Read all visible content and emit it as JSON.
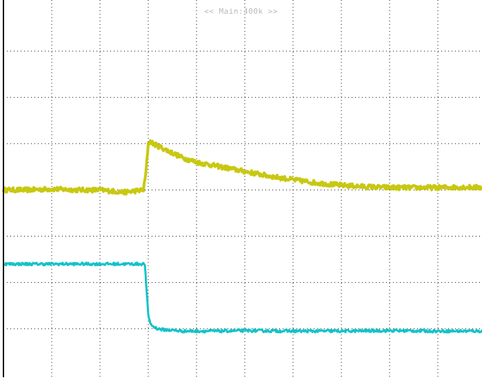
{
  "header": {
    "timebase_label": "<< Main:400k >>"
  },
  "colors": {
    "background": "#ffffff",
    "grid": "#000000",
    "channel1": "#c8c812",
    "channel2": "#12c3c8",
    "header_text": "#b8b8b8"
  },
  "chart_data": {
    "type": "line",
    "title": "",
    "xlabel": "",
    "ylabel": "",
    "grid": true,
    "grid_divisions": {
      "x": 10,
      "y": 8
    },
    "xlim": [
      0,
      10
    ],
    "ylim": [
      -4,
      4
    ],
    "series": [
      {
        "x": [
          0,
          0.5,
          1,
          1.5,
          2,
          2.5,
          2.9,
          2.95,
          3.0,
          3.05,
          3.1,
          3.2,
          3.3,
          3.5,
          3.7,
          4.0,
          4.5,
          5.0,
          5.5,
          6.0,
          6.5,
          7.0,
          7.5,
          8.0,
          8.5,
          9.0,
          9.5,
          10
        ],
        "y": [
          0.0,
          0.0,
          0.02,
          0.0,
          0.0,
          -0.05,
          0.0,
          0.35,
          1.0,
          1.05,
          1.0,
          0.95,
          0.9,
          0.8,
          0.7,
          0.6,
          0.5,
          0.4,
          0.3,
          0.22,
          0.15,
          0.1,
          0.07,
          0.05,
          0.05,
          0.05,
          0.06,
          0.05
        ],
        "noise": 0.05
      },
      {
        "x": [
          0,
          0.5,
          1,
          1.5,
          2,
          2.5,
          2.93,
          2.96,
          3.0,
          3.05,
          3.1,
          3.2,
          3.3,
          3.5,
          3.7,
          4.0,
          4.5,
          5.0,
          6.0,
          7.0,
          8.0,
          9.0,
          10
        ],
        "y": [
          -1.6,
          -1.6,
          -1.6,
          -1.6,
          -1.6,
          -1.6,
          -1.6,
          -2.1,
          -2.7,
          -2.9,
          -2.95,
          -3.0,
          -3.02,
          -3.03,
          -3.05,
          -3.05,
          -3.05,
          -3.04,
          -3.05,
          -3.05,
          -3.04,
          -3.05,
          -3.05
        ],
        "noise": 0.03
      }
    ]
  }
}
